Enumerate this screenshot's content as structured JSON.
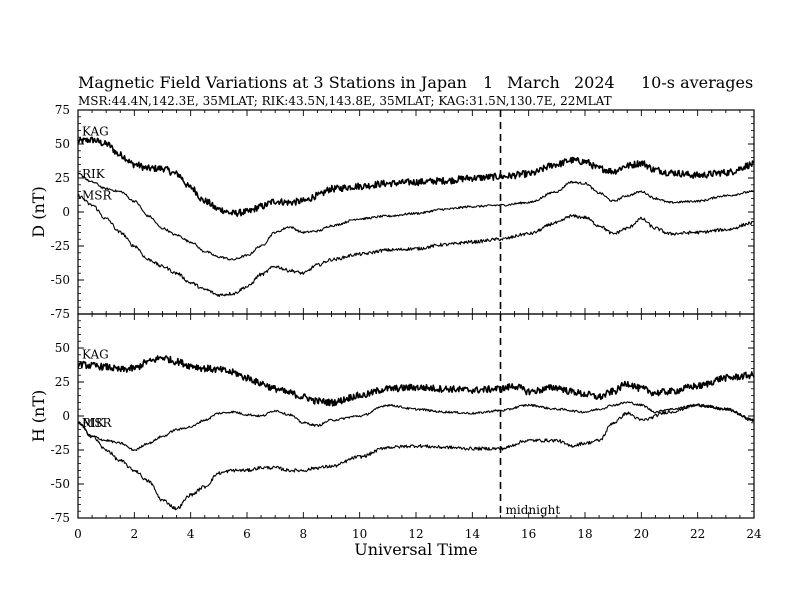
{
  "header": {
    "title": "Magnetic Field Variations at 3 Stations in Japan",
    "day": "1",
    "month": "March",
    "year": "2024",
    "averages": "10-s averages",
    "stations_line": "MSR:44.4N,142.3E, 35MLAT;  RIK:43.5N,143.8E, 35MLAT;  KAG:31.5N,130.7E, 22MLAT"
  },
  "chart_data": [
    {
      "type": "line",
      "panel": "top",
      "ylabel": "D (nT)",
      "ylim": [
        -75,
        75
      ],
      "yticks": [
        "75",
        "50",
        "25",
        "0",
        "-25",
        "-50",
        "-75"
      ],
      "xlim": [
        0,
        24
      ],
      "series": [
        {
          "name": "KAG",
          "noise": 2.5,
          "x": [
            0,
            0.5,
            1,
            1.5,
            2,
            2.5,
            3,
            3.5,
            4,
            4.5,
            5,
            5.5,
            6,
            6.5,
            7,
            7.5,
            8,
            8.5,
            9,
            10,
            11,
            12,
            13,
            14,
            15,
            16,
            17,
            17.5,
            18,
            18.5,
            19,
            19.5,
            20,
            20.5,
            21,
            22,
            23,
            24
          ],
          "y": [
            52,
            53,
            50,
            42,
            35,
            32,
            32,
            28,
            18,
            8,
            2,
            -1,
            0,
            4,
            8,
            7,
            8,
            12,
            17,
            19,
            21,
            22,
            23,
            25,
            26,
            28,
            35,
            38,
            37,
            32,
            30,
            34,
            36,
            31,
            29,
            27,
            29,
            35
          ]
        },
        {
          "name": "RIK",
          "noise": 0.8,
          "x": [
            0,
            0.5,
            1,
            1.5,
            2,
            2.5,
            3,
            3.5,
            4,
            4.5,
            5,
            5.5,
            6,
            6.5,
            7,
            7.5,
            8,
            8.5,
            9,
            10,
            11,
            12,
            13,
            14,
            15,
            16,
            17,
            17.5,
            18,
            18.5,
            19,
            19.5,
            20,
            20.5,
            21,
            22,
            23,
            24
          ],
          "y": [
            28,
            22,
            17,
            15,
            8,
            -3,
            -12,
            -17,
            -22,
            -29,
            -33,
            -35,
            -32,
            -25,
            -15,
            -11,
            -15,
            -14,
            -10,
            -5,
            -3,
            -1,
            2,
            4,
            5,
            7,
            15,
            22,
            21,
            14,
            8,
            12,
            15,
            10,
            7,
            8,
            12,
            15
          ]
        },
        {
          "name": "MSR",
          "noise": 1.2,
          "x": [
            0,
            0.5,
            1,
            1.5,
            2,
            2.5,
            3,
            3.5,
            4,
            4.5,
            5,
            5.5,
            6,
            6.5,
            7,
            7.5,
            8,
            8.5,
            9,
            10,
            11,
            12,
            13,
            14,
            15,
            16,
            17,
            17.5,
            18,
            18.5,
            19,
            19.5,
            20,
            20.5,
            21,
            22,
            23,
            24
          ],
          "y": [
            12,
            5,
            -5,
            -15,
            -25,
            -35,
            -40,
            -45,
            -52,
            -57,
            -61,
            -60,
            -55,
            -46,
            -40,
            -43,
            -45,
            -39,
            -35,
            -31,
            -28,
            -27,
            -24,
            -22,
            -20,
            -16,
            -8,
            -3,
            -4,
            -10,
            -16,
            -12,
            -5,
            -12,
            -16,
            -15,
            -13,
            -8
          ]
        }
      ]
    },
    {
      "type": "line",
      "panel": "bottom",
      "ylabel": "H (nT)",
      "ylim": [
        -75,
        75
      ],
      "yticks": [
        "50",
        "25",
        "0",
        "-25",
        "-50",
        "-75"
      ],
      "xlim": [
        0,
        24
      ],
      "xticks": [
        "0",
        "2",
        "4",
        "6",
        "8",
        "10",
        "12",
        "14",
        "16",
        "18",
        "20",
        "22",
        "24"
      ],
      "xlabel": "Universal Time",
      "annotation": {
        "x": 15,
        "label": "midnight"
      },
      "series": [
        {
          "name": "KAG",
          "noise": 2.5,
          "x": [
            0,
            0.5,
            1,
            1.5,
            2,
            2.5,
            3,
            3.5,
            4,
            4.5,
            5,
            5.5,
            6,
            6.5,
            7,
            7.5,
            8,
            8.5,
            9,
            10,
            11,
            12,
            13,
            14,
            15,
            15.5,
            16,
            17,
            17.5,
            18,
            18.5,
            19,
            19.5,
            20,
            20.5,
            21,
            22,
            23,
            24
          ],
          "y": [
            38,
            37,
            36,
            34,
            35,
            40,
            43,
            40,
            37,
            35,
            34,
            32,
            28,
            24,
            20,
            17,
            14,
            11,
            10,
            15,
            20,
            21,
            20,
            19,
            20,
            22,
            18,
            21,
            18,
            16,
            14,
            18,
            24,
            20,
            17,
            18,
            22,
            28,
            30
          ]
        },
        {
          "name": "RIK",
          "noise": 0.8,
          "x": [
            0,
            0.5,
            1,
            1.5,
            2,
            2.5,
            3,
            3.5,
            4,
            4.5,
            5,
            5.5,
            6,
            6.5,
            7,
            7.5,
            8,
            8.5,
            9,
            10,
            11,
            12,
            13,
            14,
            15,
            16,
            17,
            18,
            18.5,
            19,
            19.5,
            20,
            20.5,
            21,
            22,
            23,
            24
          ],
          "y": [
            -5,
            -15,
            -18,
            -20,
            -25,
            -20,
            -15,
            -10,
            -8,
            -3,
            2,
            3,
            1,
            0,
            4,
            1,
            -5,
            -7,
            -3,
            0,
            8,
            5,
            3,
            2,
            4,
            8,
            5,
            3,
            5,
            8,
            10,
            8,
            3,
            5,
            8,
            5,
            -3
          ]
        },
        {
          "name": "MSR",
          "noise": 1.2,
          "x": [
            0,
            0.5,
            1,
            1.5,
            2,
            2.5,
            3,
            3.5,
            4,
            4.5,
            5,
            5.5,
            6,
            6.5,
            7,
            7.5,
            8,
            8.5,
            9,
            10,
            11,
            12,
            13,
            14,
            15,
            16,
            17,
            17.5,
            18,
            18.5,
            19,
            19.5,
            20,
            21,
            22,
            23,
            24
          ],
          "y": [
            -5,
            -15,
            -25,
            -33,
            -40,
            -48,
            -62,
            -68,
            -58,
            -52,
            -42,
            -40,
            -40,
            -38,
            -38,
            -40,
            -40,
            -38,
            -37,
            -30,
            -23,
            -22,
            -23,
            -24,
            -24,
            -18,
            -18,
            -22,
            -20,
            -18,
            -5,
            2,
            -3,
            3,
            8,
            5,
            -3
          ]
        }
      ]
    }
  ]
}
